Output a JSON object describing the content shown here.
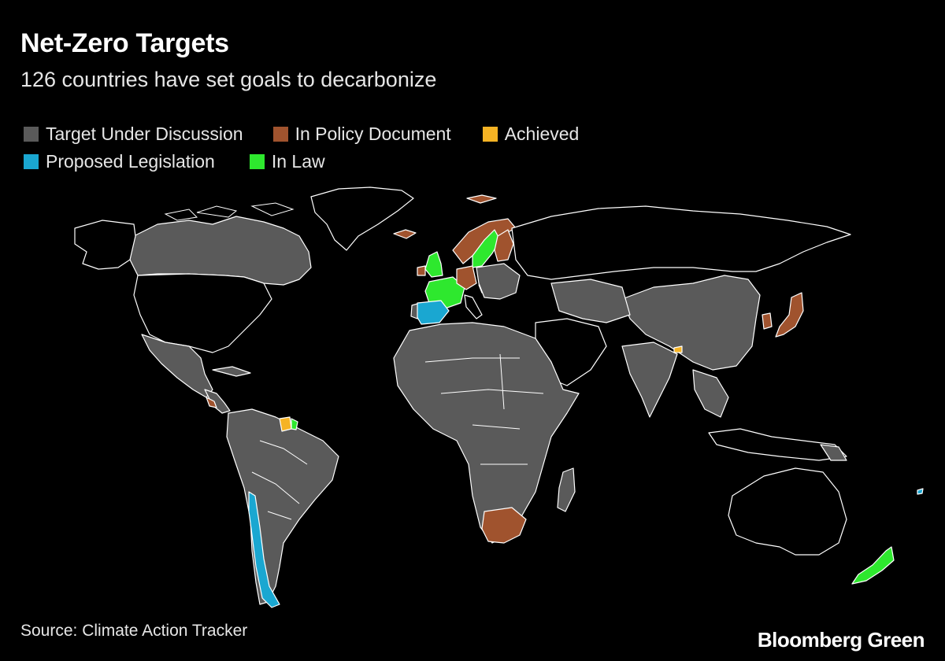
{
  "title": "Net-Zero Targets",
  "subtitle": "126 countries have set goals to decarbonize",
  "legend": [
    {
      "label": "Target Under Discussion",
      "color": "#5a5a5a"
    },
    {
      "label": "In Policy Document",
      "color": "#a0532e"
    },
    {
      "label": "Achieved",
      "color": "#f5b324"
    },
    {
      "label": "Proposed Legislation",
      "color": "#1aa7d1"
    },
    {
      "label": "In Law",
      "color": "#2ee82e"
    }
  ],
  "source": "Source: Climate Action Tracker",
  "brand": "Bloomberg Green"
}
